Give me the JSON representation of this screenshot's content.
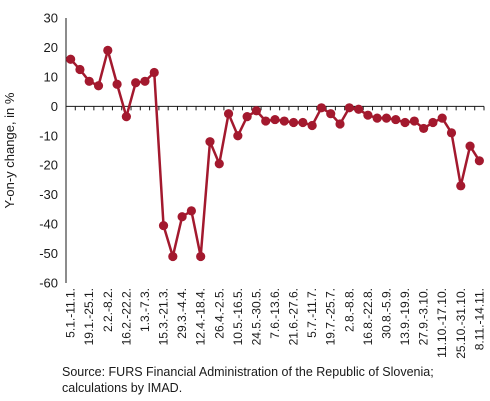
{
  "chart_data": {
    "type": "line",
    "ylabel": "Y-on-y change, in %",
    "ylim": [
      -60,
      30
    ],
    "yticks": [
      -60,
      -50,
      -40,
      -30,
      -20,
      -10,
      0,
      10,
      20,
      30
    ],
    "grid": false,
    "color": "#a3192e",
    "categories": [
      "5.1.-11.1.",
      "",
      "19.1.-25.1.",
      "",
      "2.2.-8.2.",
      "",
      "16.2.-22.2.",
      "",
      "1.3.-7.3.",
      "",
      "15.3.-21.3.",
      "",
      "29.3.-4.4.",
      "",
      "12.4.-18.4.",
      "",
      "26.4.-2.5.",
      "",
      "10.5.-16.5.",
      "",
      "24.5.-30.5.",
      "",
      "7.6.-13.6.",
      "",
      "21.6.-27.6.",
      "",
      "5.7.-11.7.",
      "",
      "19.7.-25.7.",
      "",
      "2.8.-8.8.",
      "",
      "16.8.-22.8.",
      "",
      "30.8.-5.9.",
      "",
      "13.9.-19.9.",
      "",
      "27.9.-3.10.",
      "",
      "11.10.-17.10.",
      "",
      "25.10.-31.10.",
      "",
      "8.11.-14.11."
    ],
    "series": [
      {
        "values": [
          16,
          12.5,
          8.5,
          7,
          19,
          7.5,
          -3.5,
          8,
          8.5,
          11.5,
          -40.5,
          -51,
          -37.5,
          -35.5,
          -51,
          -12,
          -19.5,
          -2.5,
          -10,
          -3.5,
          -1.5,
          -5,
          -4.5,
          -5,
          -5.5,
          -5.5,
          -6.5,
          -0.5,
          -2.5,
          -6,
          -0.5,
          -1,
          -3,
          -4,
          -4,
          -4.5,
          -5.5,
          -5,
          -7.5,
          -5.5,
          -4,
          -9,
          -27,
          -13.5,
          -18.5
        ]
      }
    ]
  },
  "source_note": "Source: FURS Financial Administration of the Republic of Slovenia; calculations by IMAD."
}
